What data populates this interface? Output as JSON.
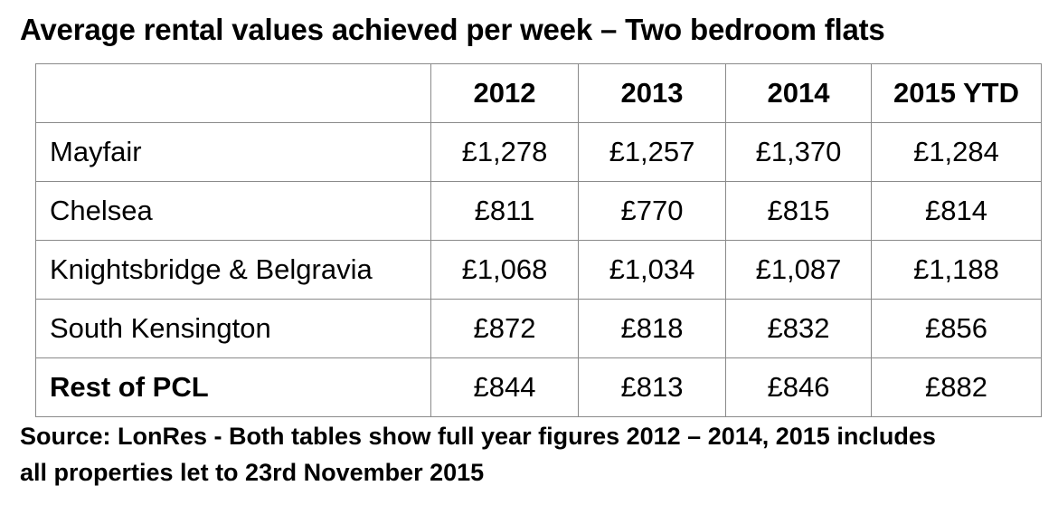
{
  "title": "Average rental values achieved per week – Two bedroom flats",
  "table": {
    "columns": [
      "",
      "2012",
      "2013",
      "2014",
      "2015 YTD"
    ],
    "rows": [
      {
        "area": "Mayfair",
        "values": [
          "£1,278",
          "£1,257",
          "£1,370",
          "£1,284"
        ]
      },
      {
        "area": "Chelsea",
        "values": [
          "£811",
          "£770",
          "£815",
          "£814"
        ]
      },
      {
        "area": "Knightsbridge & Belgravia",
        "values": [
          "£1,068",
          "£1,034",
          "£1,087",
          "£1,188"
        ]
      },
      {
        "area": "South Kensington",
        "values": [
          "£872",
          "£818",
          "£832",
          "£856"
        ]
      },
      {
        "area": "Rest of PCL",
        "values": [
          "£844",
          "£813",
          "£846",
          "£882"
        ]
      }
    ]
  },
  "source_line1": "Source: LonRes - Both tables show full year figures 2012 – 2014, 2015 includes",
  "source_line2": "all properties let to 23rd November 2015"
}
